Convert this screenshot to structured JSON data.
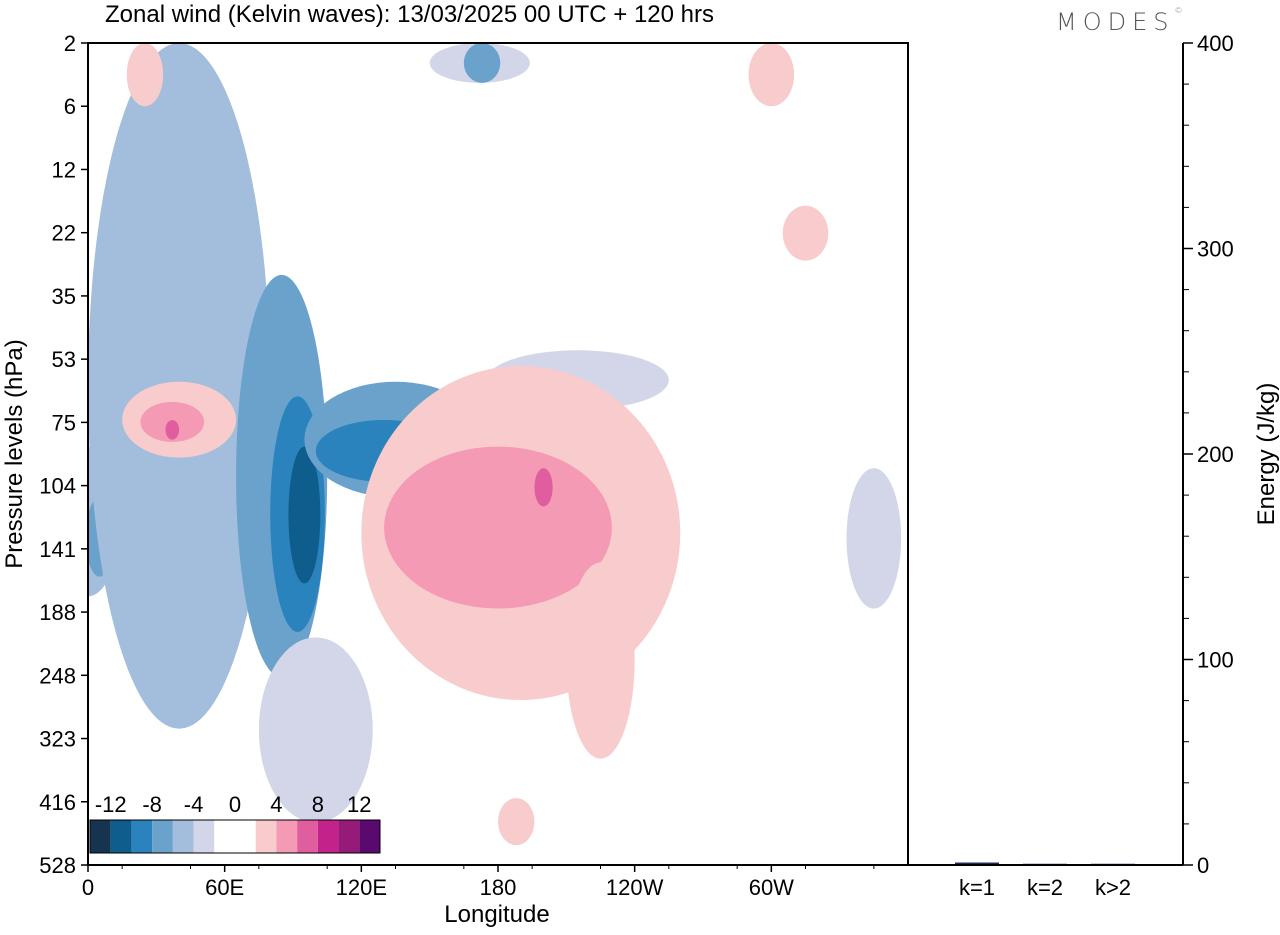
{
  "chart_data": [
    {
      "type": "heatmap",
      "title": "Zonal wind (Kelvin waves):  13/03/2025  00 UTC  + 120 hrs",
      "xlabel": "Longitude",
      "ylabel": "Pressure levels (hPa)",
      "x_ticks": [
        "0",
        "60E",
        "120E",
        "180",
        "120W",
        "60W"
      ],
      "y_ticks": [
        "2",
        "6",
        "12",
        "22",
        "35",
        "53",
        "75",
        "104",
        "141",
        "188",
        "248",
        "323",
        "416",
        "528"
      ],
      "colorbar": {
        "labels": [
          "-12",
          "-8",
          "-4",
          "0",
          "4",
          "8",
          "12"
        ],
        "colors": [
          "#16344f",
          "#0f5d8c",
          "#2a83bd",
          "#6aa2cc",
          "#a3bddc",
          "#d2d6e8",
          "#ffffff",
          "#ffffff",
          "#f8cccc",
          "#f59ab5",
          "#e05e9f",
          "#c3228a",
          "#961a78",
          "#5a0a6e"
        ]
      },
      "regions": [
        {
          "sign": "neg",
          "level": 1,
          "lon": 0,
          "p": 130,
          "dlon": 14,
          "dp": 45
        },
        {
          "sign": "neg",
          "level": 2,
          "lon": 5,
          "p": 135,
          "dlon": 6,
          "dp": 25
        },
        {
          "sign": "neg",
          "level": 1,
          "lon": 40,
          "p": 150,
          "dlon": 40,
          "dp": 160
        },
        {
          "sign": "neg",
          "level": 2,
          "lon": 85,
          "p": 140,
          "dlon": 20,
          "dp": 110
        },
        {
          "sign": "neg",
          "level": 3,
          "lon": 92,
          "p": 135,
          "dlon": 12,
          "dp": 70
        },
        {
          "sign": "neg",
          "level": 4,
          "lon": 95,
          "p": 125,
          "dlon": 7,
          "dp": 40
        },
        {
          "sign": "neg",
          "level": 2,
          "lon": 135,
          "p": 85,
          "dlon": 40,
          "dp": 25
        },
        {
          "sign": "neg",
          "level": 3,
          "lon": 130,
          "p": 88,
          "dlon": 30,
          "dp": 14
        },
        {
          "sign": "neg",
          "level": 0,
          "lon": 100,
          "p": 330,
          "dlon": 25,
          "dp": 120
        },
        {
          "sign": "neg",
          "level": 0,
          "lon": 215,
          "p": 60,
          "dlon": 40,
          "dp": 10
        },
        {
          "sign": "neg",
          "level": 0,
          "lon": 172,
          "p": 3,
          "dlon": 22,
          "dp": 1
        },
        {
          "sign": "neg",
          "level": 2,
          "lon": 173,
          "p": 3,
          "dlon": 8,
          "dp": 1
        },
        {
          "sign": "neg",
          "level": 0,
          "lon": 345,
          "p": 140,
          "dlon": 12,
          "dp": 45
        },
        {
          "sign": "pos",
          "level": 0,
          "lon": 190,
          "p": 165,
          "dlon": 70,
          "dp": 110
        },
        {
          "sign": "pos",
          "level": 1,
          "lon": 180,
          "p": 135,
          "dlon": 50,
          "dp": 50
        },
        {
          "sign": "pos",
          "level": 2,
          "lon": 200,
          "p": 105,
          "dlon": 4,
          "dp": 10
        },
        {
          "sign": "pos",
          "level": 0,
          "lon": 225,
          "p": 250,
          "dlon": 15,
          "dp": 100
        },
        {
          "sign": "pos",
          "level": 0,
          "lon": 188,
          "p": 450,
          "dlon": 8,
          "dp": 40
        },
        {
          "sign": "pos",
          "level": 0,
          "lon": 40,
          "p": 75,
          "dlon": 25,
          "dp": 15
        },
        {
          "sign": "pos",
          "level": 1,
          "lon": 37,
          "p": 75,
          "dlon": 14,
          "dp": 8
        },
        {
          "sign": "pos",
          "level": 2,
          "lon": 37,
          "p": 78,
          "dlon": 3,
          "dp": 4
        },
        {
          "sign": "pos",
          "level": 0,
          "lon": 25,
          "p": 4,
          "dlon": 8,
          "dp": 2
        },
        {
          "sign": "pos",
          "level": 0,
          "lon": 315,
          "p": 22,
          "dlon": 10,
          "dp": 5
        },
        {
          "sign": "pos",
          "level": 0,
          "lon": 300,
          "p": 4,
          "dlon": 10,
          "dp": 2
        }
      ]
    },
    {
      "type": "bar",
      "categories": [
        "k=1",
        "k=2",
        "k>2"
      ],
      "values": [
        1.2,
        0.6,
        0.6
      ],
      "ylabel": "Energy (J/kg)",
      "ylim": [
        0,
        400
      ],
      "y_ticks": [
        "0",
        "100",
        "200",
        "300",
        "400"
      ],
      "bar_color": "#1f2a5c"
    }
  ],
  "logo_text": "MODES",
  "logo_mark": "©"
}
